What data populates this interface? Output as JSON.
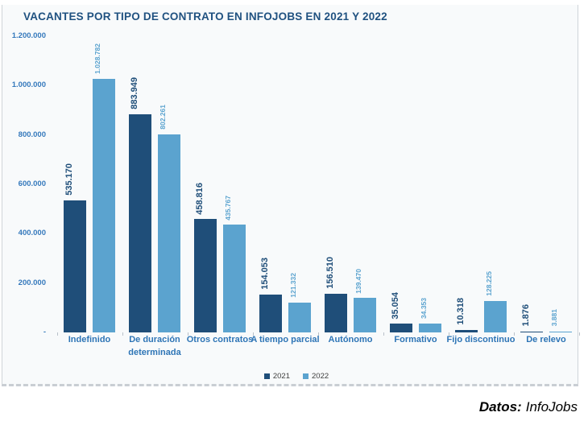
{
  "chart_data": {
    "type": "bar",
    "title": "VACANTES POR TIPO DE CONTRATO EN INFOJOBS EN 2021 Y 2022",
    "categories": [
      "Indefinido",
      "De duración determinada",
      "Otros contratos",
      "A tiempo parcial",
      "Autónomo",
      "Formativo",
      "Fijo discontinuo",
      "De relevo"
    ],
    "series": [
      {
        "name": "2021",
        "color": "#1F4E79",
        "values": [
          535170,
          883949,
          458816,
          154053,
          156510,
          35054,
          10318,
          1876
        ],
        "labels": [
          "535.170",
          "883.949",
          "458.816",
          "154.053",
          "156.510",
          "35.054",
          "10.318",
          "1.876"
        ]
      },
      {
        "name": "2022",
        "color": "#5BA3CF",
        "values": [
          1028782,
          802261,
          435767,
          121332,
          139470,
          34353,
          128225,
          3881
        ],
        "labels": [
          "1.028.782",
          "802.261",
          "435.767",
          "121.332",
          "139.470",
          "34.353",
          "128.225",
          "3.881"
        ]
      }
    ],
    "y_ticks": [
      {
        "label": "1.200.000",
        "value": 1200000
      },
      {
        "label": "1.000.000",
        "value": 1000000
      },
      {
        "label": "800.000",
        "value": 800000
      },
      {
        "label": "600.000",
        "value": 600000
      },
      {
        "label": "400.000",
        "value": 400000
      },
      {
        "label": "200.000",
        "value": 200000
      },
      {
        "label": "-",
        "value": 0
      }
    ],
    "ylim": [
      0,
      1200000
    ],
    "xlabel": "",
    "ylabel": "",
    "grid": false,
    "legend_position": "bottom"
  },
  "footer": {
    "prefix": "Datos:",
    "source": "InfoJobs"
  }
}
